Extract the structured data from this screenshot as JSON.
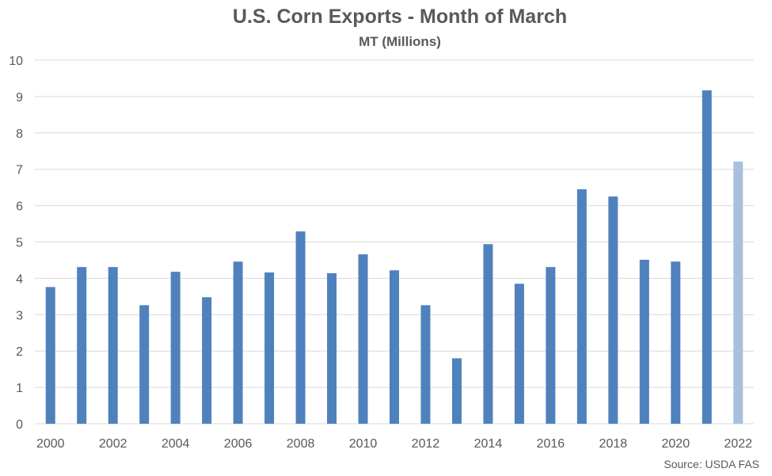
{
  "chart_data": {
    "type": "bar",
    "title": "U.S. Corn Exports - Month of March",
    "subtitle": "MT (Millions)",
    "source": "Source: USDA FAS",
    "xlabel": "",
    "ylabel": "",
    "categories": [
      "2000",
      "2001",
      "2002",
      "2003",
      "2004",
      "2005",
      "2006",
      "2007",
      "2008",
      "2009",
      "2010",
      "2011",
      "2012",
      "2013",
      "2014",
      "2015",
      "2016",
      "2017",
      "2018",
      "2019",
      "2020",
      "2021",
      "2022"
    ],
    "x_tick_labels": [
      "2000",
      "2002",
      "2004",
      "2006",
      "2008",
      "2010",
      "2012",
      "2014",
      "2016",
      "2018",
      "2020",
      "2022"
    ],
    "y_tick_labels": [
      "0",
      "1",
      "2",
      "3",
      "4",
      "5",
      "6",
      "7",
      "8",
      "9",
      "10"
    ],
    "values": [
      3.76,
      4.31,
      4.31,
      3.26,
      4.18,
      3.48,
      4.46,
      4.16,
      5.29,
      4.14,
      4.66,
      4.22,
      3.26,
      1.8,
      4.94,
      3.85,
      4.31,
      6.45,
      6.25,
      4.51,
      4.46,
      9.17,
      7.21
    ],
    "ylim": [
      0,
      10
    ],
    "grid": true,
    "legend": "none",
    "colors": {
      "bar": "#4f81bd",
      "bar_highlight": "#a7c0de",
      "grid": "#d9d9d9",
      "text": "#595959"
    },
    "highlight_index": 22
  }
}
